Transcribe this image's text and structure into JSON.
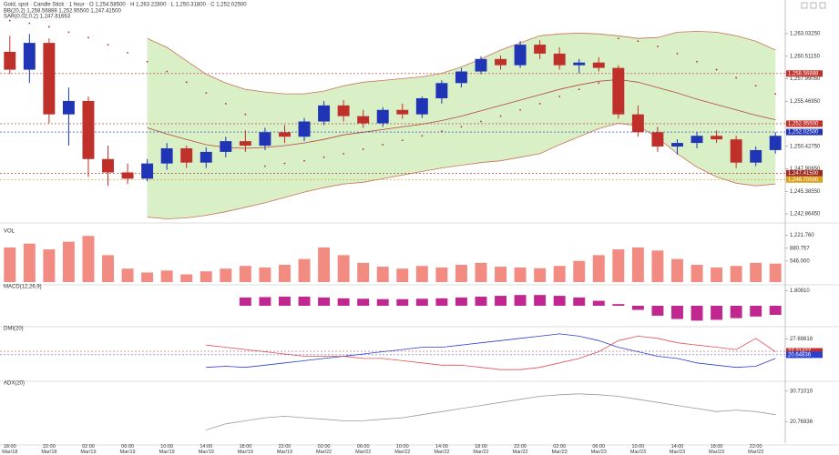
{
  "chart_data": [
    {
      "type": "candlestick",
      "title": "Gold, spot · Candle Stick · 1 hour · O 1,254.58500 · H 1,263.22800 · L 1,250.31800 · C 1,252.02500",
      "legend": [
        "BB(20,2)  1,258.56888  1,252.95500  1,247.41500",
        "SAR(0.02,0.2)  1,247.81663"
      ],
      "categories": [
        "18:00\nMar/18",
        null,
        "22:00\nMar/18",
        null,
        "02:00\nMar/19",
        null,
        "06:00\nMar/19",
        null,
        "10:00\nMar/19",
        null,
        "14:00\nMar/19",
        null,
        "18:00\nMar/19",
        null,
        "22:00\nMar/19",
        null,
        "02:00\nMar/22",
        null,
        "06:00\nMar/22",
        null,
        "10:00\nMar/22",
        null,
        "14:00\nMar/22",
        null,
        "18:00\nMar/22",
        null,
        "22:00\nMar/22",
        null,
        "02:00\nMar/23",
        null,
        "06:00\nMar/23",
        null,
        "10:00\nMar/23",
        null,
        "14:00\nMar/23",
        null,
        "18:00\nMar/23",
        null,
        "22:00\nMar/23",
        null
      ],
      "open": [
        1261.0,
        1259.0,
        1262.0,
        1254.0,
        1255.5,
        1249.0,
        1247.5,
        1246.8,
        1248.5,
        1250.2,
        1248.6,
        1249.8,
        1251.0,
        1250.5,
        1252.0,
        1251.5,
        1253.2,
        1255.0,
        1253.8,
        1253.0,
        1254.5,
        1254.0,
        1255.8,
        1257.5,
        1258.8,
        1260.2,
        1259.5,
        1261.8,
        1260.8,
        1259.5,
        1259.8,
        1259.2,
        1254.0,
        1252.0,
        1250.4,
        1250.8,
        1251.6,
        1251.2,
        1248.6,
        1250.0
      ],
      "high": [
        1262.8,
        1263.0,
        1262.5,
        1257.0,
        1256.0,
        1250.5,
        1248.5,
        1249.0,
        1250.8,
        1250.5,
        1250.3,
        1251.5,
        1252.2,
        1252.5,
        1252.8,
        1253.6,
        1255.5,
        1255.6,
        1254.5,
        1254.8,
        1255.2,
        1256.0,
        1257.8,
        1259.2,
        1260.5,
        1260.6,
        1262.2,
        1262.3,
        1261.5,
        1260.2,
        1260.4,
        1259.5,
        1255.0,
        1252.6,
        1251.2,
        1252.0,
        1252.2,
        1251.6,
        1250.4,
        1252.0
      ],
      "low": [
        1258.5,
        1257.5,
        1253.0,
        1250.5,
        1247.0,
        1246.0,
        1246.2,
        1246.5,
        1247.8,
        1248.0,
        1248.0,
        1249.2,
        1249.8,
        1250.0,
        1250.8,
        1251.0,
        1252.8,
        1253.2,
        1252.5,
        1252.6,
        1253.5,
        1253.6,
        1255.2,
        1257.0,
        1258.5,
        1259.0,
        1259.2,
        1260.2,
        1259.0,
        1258.6,
        1258.8,
        1253.5,
        1251.5,
        1249.8,
        1249.5,
        1250.2,
        1250.8,
        1248.0,
        1248.2,
        1249.6
      ],
      "close": [
        1259.0,
        1262.0,
        1254.0,
        1255.5,
        1249.0,
        1247.5,
        1246.8,
        1248.5,
        1250.2,
        1248.6,
        1249.8,
        1251.0,
        1250.5,
        1252.0,
        1251.5,
        1253.2,
        1255.0,
        1253.8,
        1253.0,
        1254.5,
        1254.0,
        1255.8,
        1257.5,
        1258.8,
        1260.2,
        1259.5,
        1261.8,
        1260.8,
        1259.5,
        1259.8,
        1259.2,
        1254.0,
        1252.0,
        1250.4,
        1250.8,
        1251.6,
        1251.2,
        1248.6,
        1250.0,
        1251.6
      ],
      "up_color": "#1f35b5",
      "down_color": "#c0302a",
      "band_fill": "#d9efc6",
      "series": [
        {
          "color": "#c9745a",
          "values": [
            null,
            null,
            null,
            null,
            null,
            null,
            null,
            1262.5,
            1261.5,
            1260,
            1258.5,
            1257.5,
            1256.8,
            1256.5,
            1256.3,
            1256.3,
            1256.6,
            1257.2,
            1257.6,
            1257.8,
            1258,
            1258.2,
            1258.6,
            1259.3,
            1260.2,
            1261.2,
            1262,
            1262.8,
            1263,
            1263.1,
            1263,
            1262.8,
            1262.5,
            1262.6,
            1263.2,
            1263.3,
            1263.2,
            1262.8,
            1262.2,
            1261.2
          ]
        },
        {
          "color": "#b5473c",
          "values": [
            null,
            null,
            null,
            null,
            null,
            null,
            null,
            1252.5,
            1251.8,
            1251.2,
            1250.6,
            1250.3,
            1250.2,
            1250.3,
            1250.5,
            1250.8,
            1251.2,
            1251.7,
            1252,
            1252.3,
            1252.6,
            1252.9,
            1253.3,
            1253.8,
            1254.4,
            1255,
            1255.6,
            1256.2,
            1256.8,
            1257.3,
            1257.7,
            1257.9,
            1257.6,
            1257,
            1256.4,
            1255.7,
            1255.1,
            1254.5,
            1253.9,
            1253.4
          ]
        },
        {
          "color": "#c9745a",
          "values": [
            null,
            null,
            null,
            null,
            null,
            null,
            null,
            1242.5,
            1242.3,
            1242.4,
            1242.7,
            1243.1,
            1243.6,
            1244.1,
            1244.7,
            1245.3,
            1245.8,
            1246.2,
            1246.4,
            1246.8,
            1247.2,
            1247.6,
            1248,
            1248.3,
            1248.6,
            1248.8,
            1249.2,
            1249.6,
            1250.6,
            1251.5,
            1252.4,
            1253,
            1252.7,
            1251.4,
            1249.6,
            1248.1,
            1247,
            1246.3,
            1246,
            1246.2
          ]
        }
      ],
      "sar": {
        "color": "#b0302a",
        "values": [
          1264.5,
          1264.2,
          1263.8,
          1263.2,
          1262.6,
          1261.8,
          1260.9,
          1259.9,
          1258.8,
          1257.6,
          1256.4,
          1255.2,
          1254.0,
          1248.2,
          1248.5,
          1248.8,
          1249.2,
          1249.6,
          1250.1,
          1250.6,
          1251.1,
          1251.6,
          1252.1,
          1252.6,
          1253.2,
          1253.8,
          1254.5,
          1255.2,
          1256.0,
          1256.8,
          1257.5,
          1262.5,
          1262.2,
          1261.6,
          1260.8,
          1259.9,
          1259.0,
          1258.1,
          1257.2,
          1256.3
        ]
      },
      "tags": [
        {
          "value": 1258.56888,
          "label": "1,258.56888",
          "color": "#c0302a"
        },
        {
          "value": 1252.955,
          "label": "1,252.95500",
          "color": "#c0302a"
        },
        {
          "value": 1252.025,
          "label": "1,252.02500",
          "color": "#1f35b5"
        },
        {
          "value": 1247.415,
          "label": "1,247.41500",
          "color": "#a0281f"
        },
        {
          "value": 1246.705,
          "label": "1,246.70500",
          "color": "#d9a21b"
        }
      ],
      "ylim": [
        1242.15,
        1264.56
      ],
      "yticks": [
        {
          "value": 1263.0325,
          "label": "1,263.03250"
        },
        {
          "value": 1260.5115,
          "label": "1,260.51150"
        },
        {
          "value": 1257.9905,
          "label": "1,257.99050"
        },
        {
          "value": 1255.4695,
          "label": "1,255.46950"
        },
        {
          "value": 1252.9485,
          "label": "1,252.94850"
        },
        {
          "value": 1250.4275,
          "label": "1,250.42750"
        },
        {
          "value": 1247.9065,
          "label": "1,247.90650"
        },
        {
          "value": 1245.3855,
          "label": "1,245.38550"
        },
        {
          "value": 1242.8645,
          "label": "1,242.86450"
        }
      ]
    },
    {
      "type": "bar",
      "title": "VOL",
      "color": "#f28b82",
      "values": [
        900,
        1000,
        850,
        1050,
        1200,
        700,
        350,
        250,
        300,
        200,
        280,
        350,
        420,
        380,
        450,
        600,
        900,
        700,
        500,
        400,
        350,
        420,
        380,
        450,
        500,
        400,
        380,
        360,
        420,
        550,
        700,
        850,
        900,
        820,
        600,
        450,
        380,
        420,
        500,
        480
      ],
      "ylim": [
        0,
        1300
      ],
      "yticks": [
        {
          "value": 1221.76,
          "label": "1,221.760"
        },
        880.757,
        {
          "value": 546,
          "label": "546.000"
        }
      ]
    },
    {
      "type": "bar",
      "title": "MACD(12,26,9)",
      "color": "#c0288f",
      "values": [
        null,
        null,
        null,
        null,
        null,
        null,
        null,
        null,
        null,
        null,
        null,
        null,
        1.0,
        1.05,
        1.1,
        1.1,
        1.0,
        0.9,
        0.85,
        0.8,
        0.8,
        0.85,
        0.9,
        1.0,
        1.1,
        1.2,
        1.3,
        1.3,
        1.2,
        1.0,
        0.6,
        0.2,
        -0.5,
        -1.2,
        -1.6,
        -1.8,
        -1.7,
        -1.5,
        -1.3,
        -1.1
      ],
      "ylim": [
        -2.2,
        2.2
      ],
      "yticks": [
        {
          "value": 1.8081,
          "label": "1.80810"
        }
      ]
    },
    {
      "type": "line",
      "title": "DMI(20)",
      "series": [
        {
          "color": "#2a3fd0",
          "values": [
            null,
            null,
            null,
            null,
            null,
            null,
            null,
            null,
            null,
            null,
            15,
            15.5,
            15,
            16,
            17,
            18,
            19,
            20,
            21,
            22,
            23,
            24,
            24,
            25,
            26,
            27,
            28,
            29,
            30,
            29,
            27,
            24,
            22,
            20,
            19,
            17,
            16,
            15,
            15.5,
            19
          ]
        },
        {
          "color": "#e0505a",
          "values": [
            null,
            null,
            null,
            null,
            null,
            null,
            null,
            null,
            null,
            null,
            25,
            24,
            23,
            22,
            21,
            20,
            20,
            20,
            19,
            19,
            18,
            17,
            16,
            16,
            15,
            14,
            14,
            15,
            17,
            19,
            22,
            27,
            29,
            28,
            26,
            25,
            24,
            23,
            28,
            22
          ]
        }
      ],
      "tags": [
        {
          "value": 22.21427,
          "label": "22.21427",
          "color": "#c0302a"
        },
        {
          "value": 20.64836,
          "label": "20.64836",
          "color": "#2a3fd0"
        }
      ],
      "ylim": [
        10,
        32
      ],
      "yticks": [
        27.69818,
        19.77848
      ]
    },
    {
      "type": "line",
      "title": "ADX(20)",
      "series": [
        {
          "color": "#9a9a9a",
          "values": [
            null,
            null,
            null,
            null,
            null,
            null,
            null,
            null,
            null,
            null,
            18,
            20,
            21,
            22,
            22.5,
            22,
            21.5,
            21,
            21,
            21.5,
            22,
            23,
            24,
            25,
            26,
            27,
            28,
            29,
            29.5,
            29.8,
            29.5,
            29,
            28,
            27,
            26,
            25,
            24,
            24.5,
            24,
            23
          ]
        }
      ],
      "ylim": [
        14,
        33
      ],
      "yticks": [
        {
          "value": 30.7101,
          "label": "30.71010"
        },
        20.76936
      ]
    }
  ]
}
